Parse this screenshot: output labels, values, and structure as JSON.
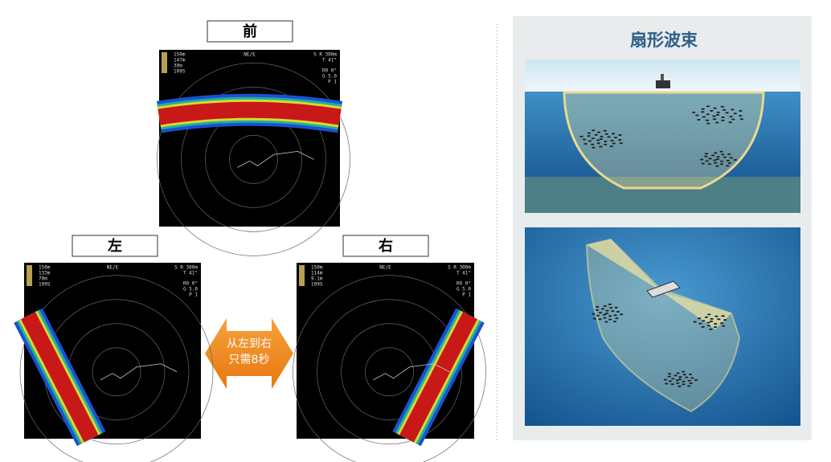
{
  "labels": {
    "front": "前",
    "left": "左",
    "right": "右"
  },
  "arrow_text": [
    "从左到右",
    "只需8秒"
  ],
  "panel_title": "扇形波束",
  "screens": [
    {
      "heading": "NE/E",
      "readouts": [
        "150m",
        "147m",
        "30m",
        "109S"
      ],
      "range": "S R 300m",
      "tilt": "T 41°",
      "settings": [
        "R0 0°",
        "G 5.0",
        "P 1"
      ]
    },
    {
      "heading": "NE/E",
      "readouts": [
        "150m",
        "133m",
        "70m",
        "109S"
      ],
      "range": "S R 300m",
      "tilt": "T 41°",
      "settings": [
        "R0 0°",
        "G 5.0",
        "P 1"
      ]
    },
    {
      "heading": "NE/E",
      "readouts": [
        "150m",
        "114m",
        "9.1m",
        "109S"
      ],
      "range": "S R 300m",
      "tilt": "T 41°",
      "settings": [
        "R0 0°",
        "G 5.0",
        "P 1"
      ]
    }
  ]
}
